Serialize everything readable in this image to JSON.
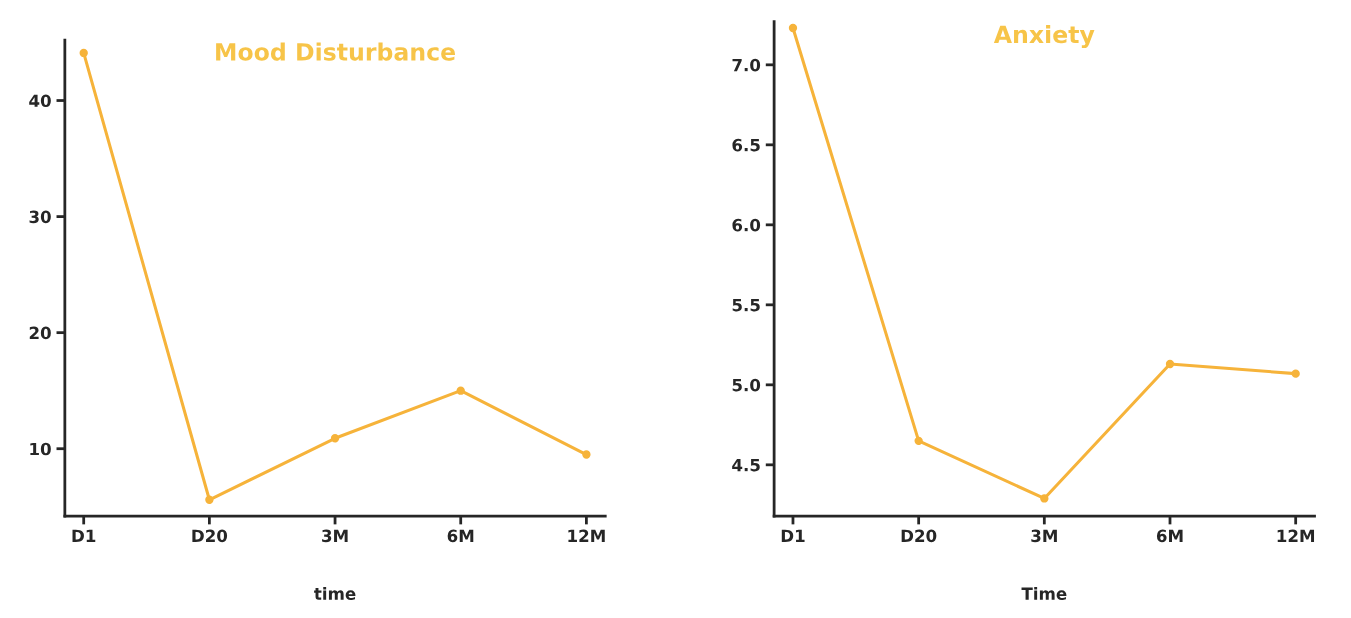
{
  "chart_data": [
    {
      "type": "line",
      "title": "Mood Disturbance",
      "xlabel": "time",
      "categories": [
        "D1",
        "D20",
        "3M",
        "6M",
        "12M"
      ],
      "series": [
        {
          "color": "#f6b33a",
          "values": [
            44.1,
            5.6,
            10.9,
            15.0,
            9.5
          ]
        }
      ],
      "ylim": [
        4.2,
        45.2
      ],
      "yticks": [
        10,
        20,
        30,
        40
      ],
      "grid": false,
      "marker": "circle",
      "line_style": "solid"
    },
    {
      "type": "line",
      "title": "Anxiety",
      "xlabel": "Time",
      "categories": [
        "D1",
        "D20",
        "3M",
        "6M",
        "12M"
      ],
      "series": [
        {
          "color": "#f6b33a",
          "values": [
            7.23,
            4.65,
            4.29,
            5.13,
            5.07
          ]
        }
      ],
      "ylim": [
        4.18,
        7.27
      ],
      "yticks": [
        {
          "value": 4.5,
          "label": "4.5"
        },
        {
          "value": 5.0,
          "label": "5.0"
        },
        {
          "value": 5.5,
          "label": "5.5"
        },
        {
          "value": 6.0,
          "label": "6.0"
        },
        {
          "value": 6.5,
          "label": "6.5"
        },
        {
          "value": 7.0,
          "label": "7.0"
        }
      ],
      "grid": false,
      "marker": "circle",
      "line_style": "solid"
    }
  ]
}
